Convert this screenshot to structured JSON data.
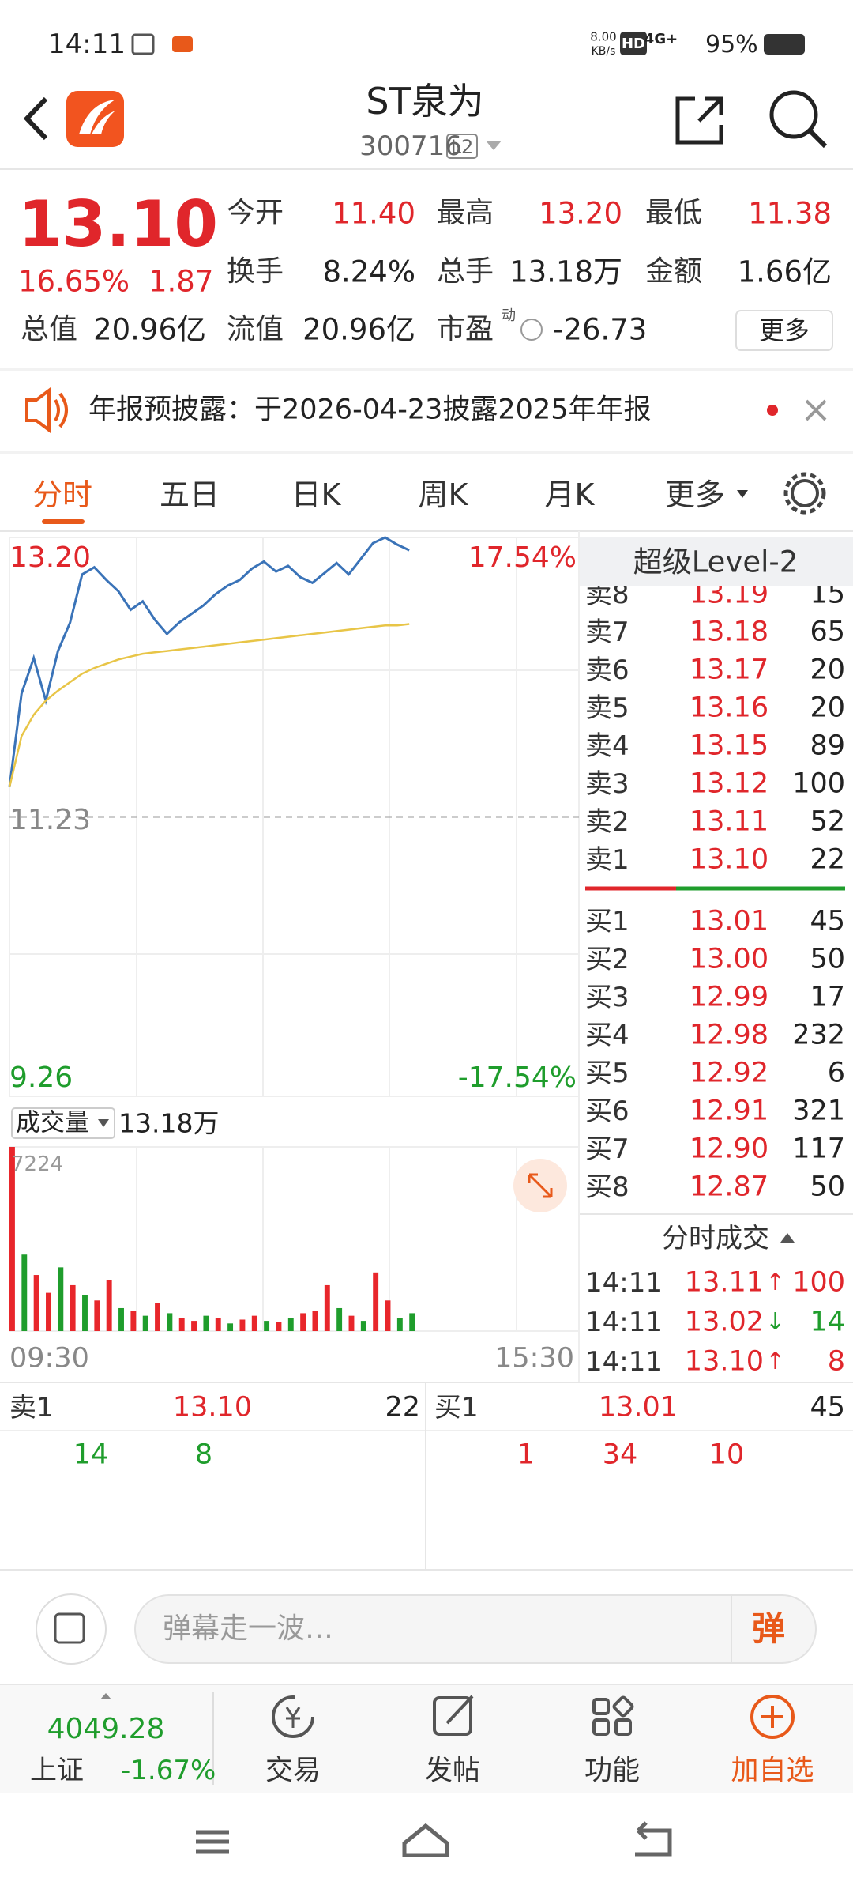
{
  "status_bar": {
    "time": "14:11",
    "net_speed": "8.00",
    "net_unit": "KB/s",
    "hd": "HD",
    "signal": "4G+",
    "battery": "95%"
  },
  "header": {
    "name": "ST泉为",
    "code": "300716",
    "level": "L2"
  },
  "quote": {
    "price": "13.10",
    "change_pct": "16.65%",
    "change": "1.87",
    "pe_mark": "动",
    "more": "更多",
    "stats": [
      {
        "label": "今开",
        "value": "11.40"
      },
      {
        "label": "最高",
        "value": "13.20"
      },
      {
        "label": "最低",
        "value": "11.38"
      },
      {
        "label": "换手",
        "value": "8.24%"
      },
      {
        "label": "总手",
        "value": "13.18万"
      },
      {
        "label": "金额",
        "value": "1.66亿"
      },
      {
        "label": "总值",
        "value": "20.96亿"
      },
      {
        "label": "流值",
        "value": "20.96亿"
      },
      {
        "label": "市盈",
        "value": "-26.73"
      }
    ]
  },
  "notice": {
    "text": "年报预披露：于2026-04-23披露2025年年报"
  },
  "tabs": [
    "分时",
    "五日",
    "日K",
    "周K",
    "月K",
    "更多"
  ],
  "chart_data": [
    {
      "type": "line",
      "categories": [
        "09:30",
        null,
        null,
        null,
        null,
        null,
        null,
        null,
        null,
        null,
        null,
        null,
        null,
        null,
        null,
        null,
        null,
        null,
        null,
        null,
        null,
        null,
        null,
        null,
        null,
        null,
        null,
        null,
        null,
        null,
        null,
        null,
        null,
        null,
        null,
        null,
        null,
        null,
        null,
        null,
        null,
        null,
        null,
        null,
        null,
        null,
        null,
        "15:30"
      ],
      "ylim": [
        9.26,
        13.2
      ],
      "yticks": [
        9.26,
        11.23,
        {
          "value": 13.2,
          "label": "13.20"
        }
      ],
      "y2lim": [
        -17.54,
        17.54
      ],
      "y2ticks": [
        {
          "value": -17.54,
          "label": "-17.54%"
        },
        {
          "value": 17.54,
          "label": "17.54%"
        }
      ],
      "series": [
        {
          "color": "#3a73b8",
          "values": [
            11.44,
            12.1,
            12.35,
            12.05,
            12.4,
            12.6,
            12.94,
            12.99,
            12.9,
            12.82,
            12.69,
            12.75,
            12.62,
            12.52,
            12.6,
            12.66,
            12.72,
            12.8,
            12.86,
            12.9,
            12.98,
            13.03,
            12.96,
            13.0,
            12.92,
            12.88,
            12.95,
            13.02,
            12.94,
            13.05,
            13.16,
            13.2,
            13.15,
            13.11,
            null,
            null,
            null,
            null,
            null,
            null,
            null,
            null,
            null,
            null,
            null,
            null,
            null,
            null
          ]
        },
        {
          "color": "#e8c547",
          "values": [
            11.44,
            11.8,
            11.95,
            12.05,
            12.12,
            12.18,
            12.24,
            12.28,
            12.31,
            12.34,
            12.36,
            12.38,
            12.39,
            12.4,
            12.41,
            12.42,
            12.43,
            12.44,
            12.45,
            12.46,
            12.47,
            12.48,
            12.49,
            12.5,
            12.51,
            12.52,
            12.53,
            12.54,
            12.55,
            12.56,
            12.57,
            12.58,
            12.58,
            12.59,
            null,
            null,
            null,
            null,
            null,
            null,
            null,
            null,
            null,
            null,
            null,
            null,
            null,
            null
          ]
        }
      ]
    },
    {
      "type": "bar",
      "label": "成交量",
      "total": "13.18万",
      "ylim": [
        0,
        7224
      ],
      "yticks": [
        7224
      ],
      "values": [
        7224,
        3000,
        2200,
        1500,
        2500,
        1800,
        1400,
        1200,
        2000,
        900,
        800,
        600,
        1100,
        700,
        500,
        400,
        600,
        500,
        300,
        450,
        600,
        400,
        350,
        500,
        700,
        800,
        1800,
        900,
        600,
        400,
        2300,
        1200,
        500,
        700,
        null,
        null,
        null,
        null,
        null,
        null,
        null,
        null,
        null,
        null,
        null,
        null,
        null,
        null
      ],
      "colors": [
        "#e8262b",
        "#1f9d2c",
        "#e8262b",
        "#e8262b",
        "#1f9d2c",
        "#e8262b",
        "#1f9d2c",
        "#e8262b",
        "#e8262b",
        "#1f9d2c",
        "#e8262b",
        "#1f9d2c",
        "#e8262b",
        "#1f9d2c",
        "#e8262b",
        "#e8262b",
        "#1f9d2c",
        "#e8262b",
        "#1f9d2c",
        "#e8262b",
        "#e8262b",
        "#1f9d2c",
        "#e8262b",
        "#1f9d2c",
        "#e8262b",
        "#e8262b",
        "#e8262b",
        "#1f9d2c",
        "#e8262b",
        "#1f9d2c",
        "#e8262b",
        "#e8262b",
        "#1f9d2c",
        "#1f9d2c",
        null,
        null,
        null,
        null,
        null,
        null,
        null,
        null,
        null,
        null,
        null,
        null,
        null,
        null
      ]
    }
  ],
  "order_book": {
    "title": "超级Level-2",
    "asks": [
      {
        "label": "卖8",
        "price": "13.19",
        "volume": "15"
      },
      {
        "label": "卖7",
        "price": "13.18",
        "volume": "65"
      },
      {
        "label": "卖6",
        "price": "13.17",
        "volume": "20"
      },
      {
        "label": "卖5",
        "price": "13.16",
        "volume": "20"
      },
      {
        "label": "卖4",
        "price": "13.15",
        "volume": "89"
      },
      {
        "label": "卖3",
        "price": "13.12",
        "volume": "100"
      },
      {
        "label": "卖2",
        "price": "13.11",
        "volume": "52"
      },
      {
        "label": "卖1",
        "price": "13.10",
        "volume": "22"
      }
    ],
    "bids": [
      {
        "label": "买1",
        "price": "13.01",
        "volume": "45"
      },
      {
        "label": "买2",
        "price": "13.00",
        "volume": "50"
      },
      {
        "label": "买3",
        "price": "12.99",
        "volume": "17"
      },
      {
        "label": "买4",
        "price": "12.98",
        "volume": "232"
      },
      {
        "label": "买5",
        "price": "12.92",
        "volume": "6"
      },
      {
        "label": "买6",
        "price": "12.91",
        "volume": "321"
      },
      {
        "label": "买7",
        "price": "12.90",
        "volume": "117"
      },
      {
        "label": "买8",
        "price": "12.87",
        "volume": "50"
      }
    ]
  },
  "trades": {
    "title": "分时成交",
    "rows": [
      {
        "time": "14:11",
        "price": "13.11",
        "arrow": "↑",
        "volume": "100",
        "color": "#e0262b"
      },
      {
        "time": "14:11",
        "price": "13.02",
        "arrow": "↓",
        "volume": "14",
        "color": "#1f9d2c"
      },
      {
        "time": "14:11",
        "price": "13.10",
        "arrow": "↑",
        "volume": "8",
        "color": "#e0262b"
      }
    ]
  },
  "queue": {
    "ask": {
      "label": "卖1",
      "price": "13.10",
      "volume": "22",
      "orders": [
        "14",
        "8"
      ]
    },
    "bid": {
      "label": "买1",
      "price": "13.01",
      "volume": "45",
      "orders": [
        "1",
        "34",
        "10"
      ]
    }
  },
  "danmu": {
    "placeholder": "弹幕走一波…",
    "button": "弹"
  },
  "nav": {
    "index_value": "4049.28",
    "index_name": "上证",
    "index_change": "-1.67%",
    "items": [
      "交易",
      "发帖",
      "功能",
      "加自选"
    ]
  }
}
